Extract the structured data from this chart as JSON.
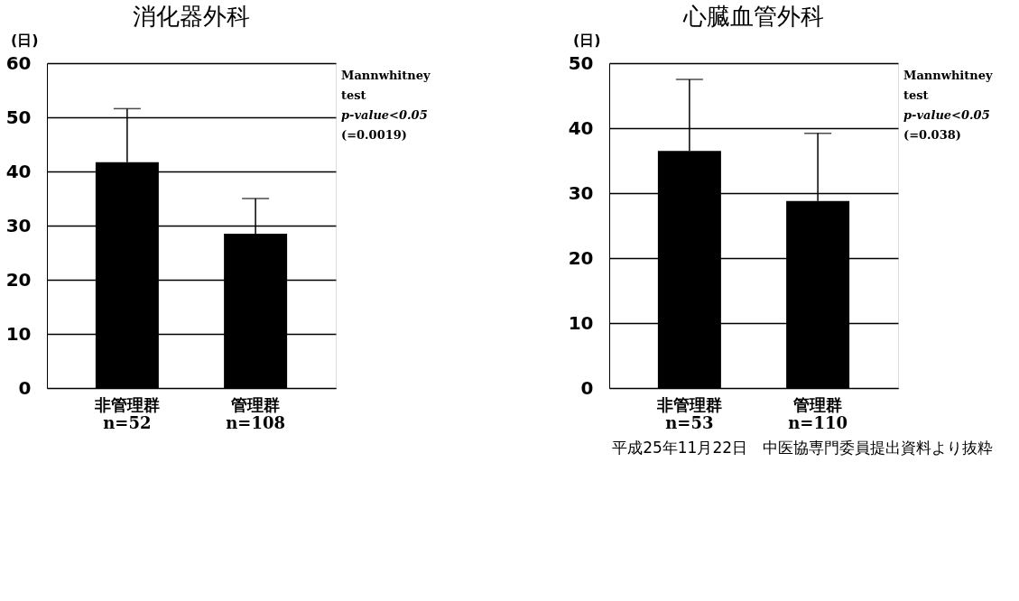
{
  "chart_data": [
    {
      "type": "bar",
      "title": "消化器外科",
      "ylabel": "(日)",
      "categories": [
        "非管理群\nn=52",
        "管理群\nn=108"
      ],
      "values": [
        41.7,
        28.5
      ],
      "errors": [
        [
          41.7,
          51.6
        ],
        [
          28.5,
          35.0
        ]
      ],
      "color": "#000000",
      "ylim": [
        0,
        60
      ],
      "yticks": [
        0,
        10,
        20,
        30,
        40,
        50,
        60
      ],
      "grid": "y",
      "annotations": [
        "Mannwhitney",
        "test",
        "p-value<0.05",
        "(=0.0019)"
      ]
    },
    {
      "type": "bar",
      "title": "心臓血管外科",
      "ylabel": "(日)",
      "categories": [
        "非管理群\nn=53",
        "管理群\nn=110"
      ],
      "values": [
        36.5,
        28.8
      ],
      "errors": [
        [
          36.5,
          47.5
        ],
        [
          28.8,
          39.2
        ]
      ],
      "color": "#000000",
      "ylim": [
        0,
        50
      ],
      "yticks": [
        0,
        10,
        20,
        30,
        40,
        50
      ],
      "grid": "y",
      "annotations": [
        "Mannwhitney",
        "test",
        "p-value<0.05",
        "(=0.038)",
        "平成25年11月22日　中医協専門委員提出資料より抜粋"
      ]
    }
  ]
}
